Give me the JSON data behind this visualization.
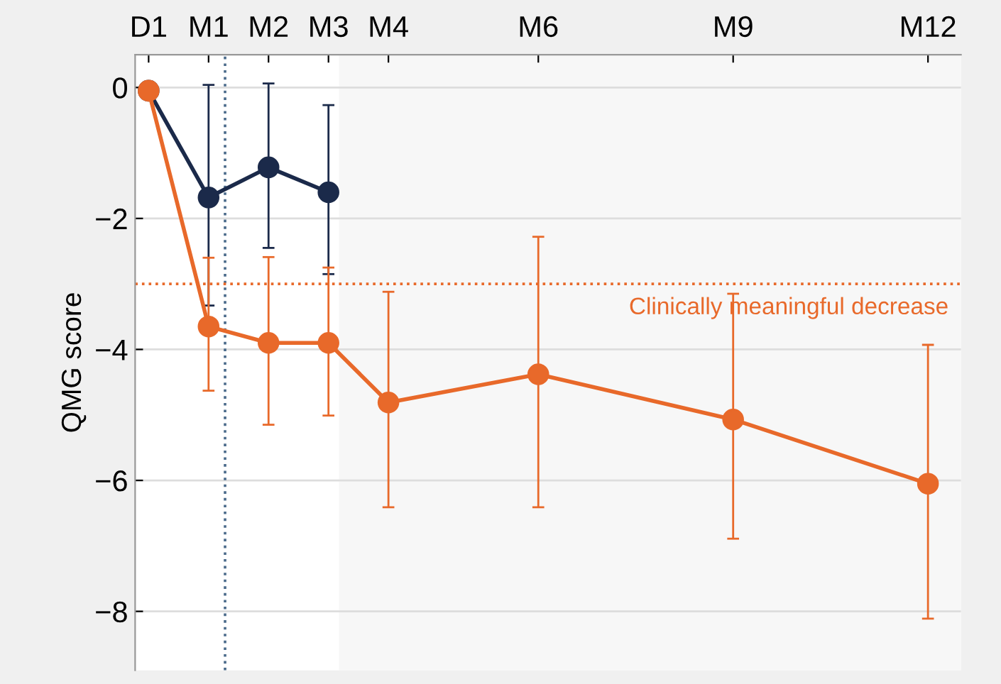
{
  "chart_data": {
    "type": "line",
    "ylabel": "QMG score",
    "categories": [
      "D1",
      null,
      null,
      null,
      "M1",
      null,
      null,
      null,
      "M2",
      null,
      null,
      null,
      "M3",
      null,
      null,
      null,
      "M4",
      null,
      null,
      null,
      null,
      null,
      null,
      null,
      null,
      null,
      "M6",
      null,
      null,
      null,
      null,
      null,
      null,
      null,
      null,
      null,
      null,
      null,
      null,
      "M9",
      null,
      null,
      null,
      null,
      null,
      null,
      null,
      null,
      null,
      null,
      null,
      null,
      "M12"
    ],
    "ylim": [
      -8.9,
      0.5
    ],
    "yticks": [
      {
        "value": 0,
        "label": "0"
      },
      {
        "value": -2,
        "label": "−2"
      },
      {
        "value": -4,
        "label": "−4"
      },
      {
        "value": -6,
        "label": "−6"
      },
      {
        "value": -8,
        "label": "−8"
      }
    ],
    "series": [
      {
        "color": "#1b2a4a",
        "values": [
          -0.05,
          null,
          null,
          null,
          -1.68,
          null,
          null,
          null,
          -1.22,
          null,
          null,
          null,
          -1.6,
          null,
          null,
          null,
          null,
          null,
          null,
          null,
          null,
          null,
          null,
          null,
          null,
          null,
          null,
          null,
          null,
          null,
          null,
          null,
          null,
          null,
          null,
          null,
          null,
          null,
          null,
          null,
          null,
          null,
          null,
          null,
          null,
          null,
          null,
          null,
          null,
          null,
          null,
          null,
          null
        ],
        "errors": [
          null,
          null,
          null,
          null,
          [
            -3.33,
            0.04
          ],
          null,
          null,
          null,
          [
            -2.45,
            0.06
          ],
          null,
          null,
          null,
          [
            -2.85,
            -0.27
          ],
          null,
          null,
          null,
          null,
          null,
          null,
          null,
          null,
          null,
          null,
          null,
          null,
          null,
          null,
          null,
          null,
          null,
          null,
          null,
          null,
          null,
          null,
          null,
          null,
          null,
          null,
          null,
          null,
          null,
          null,
          null,
          null,
          null,
          null,
          null,
          null,
          null,
          null,
          null,
          null
        ]
      },
      {
        "color": "#e8692a",
        "values": [
          -0.05,
          null,
          null,
          null,
          -3.65,
          null,
          null,
          null,
          -3.9,
          null,
          null,
          null,
          -3.9,
          null,
          null,
          null,
          -4.81,
          null,
          null,
          null,
          null,
          null,
          null,
          null,
          null,
          null,
          -4.38,
          null,
          null,
          null,
          null,
          null,
          null,
          null,
          null,
          null,
          null,
          null,
          null,
          -5.07,
          null,
          null,
          null,
          null,
          null,
          null,
          null,
          null,
          null,
          null,
          null,
          null,
          -6.05
        ],
        "errors": [
          null,
          null,
          null,
          null,
          [
            -4.63,
            -2.6
          ],
          null,
          null,
          null,
          [
            -5.15,
            -2.59
          ],
          null,
          null,
          null,
          [
            -5.01,
            -2.75
          ],
          null,
          null,
          null,
          [
            -6.41,
            -3.12
          ],
          null,
          null,
          null,
          null,
          null,
          null,
          null,
          null,
          null,
          [
            -6.41,
            -2.28
          ],
          null,
          null,
          null,
          null,
          null,
          null,
          null,
          null,
          null,
          null,
          null,
          null,
          [
            -6.89,
            -3.15
          ],
          null,
          null,
          null,
          null,
          null,
          null,
          null,
          null,
          null,
          null,
          null,
          null,
          [
            -8.11,
            -3.93
          ]
        ]
      }
    ],
    "marker": "circle",
    "line_style": "solid",
    "grid": "y",
    "ref_lines": [
      {
        "axis": "y",
        "value": -3,
        "color": "#e8692a",
        "line_style": "dotted",
        "label": "Clinically meaningful decrease"
      }
    ]
  }
}
